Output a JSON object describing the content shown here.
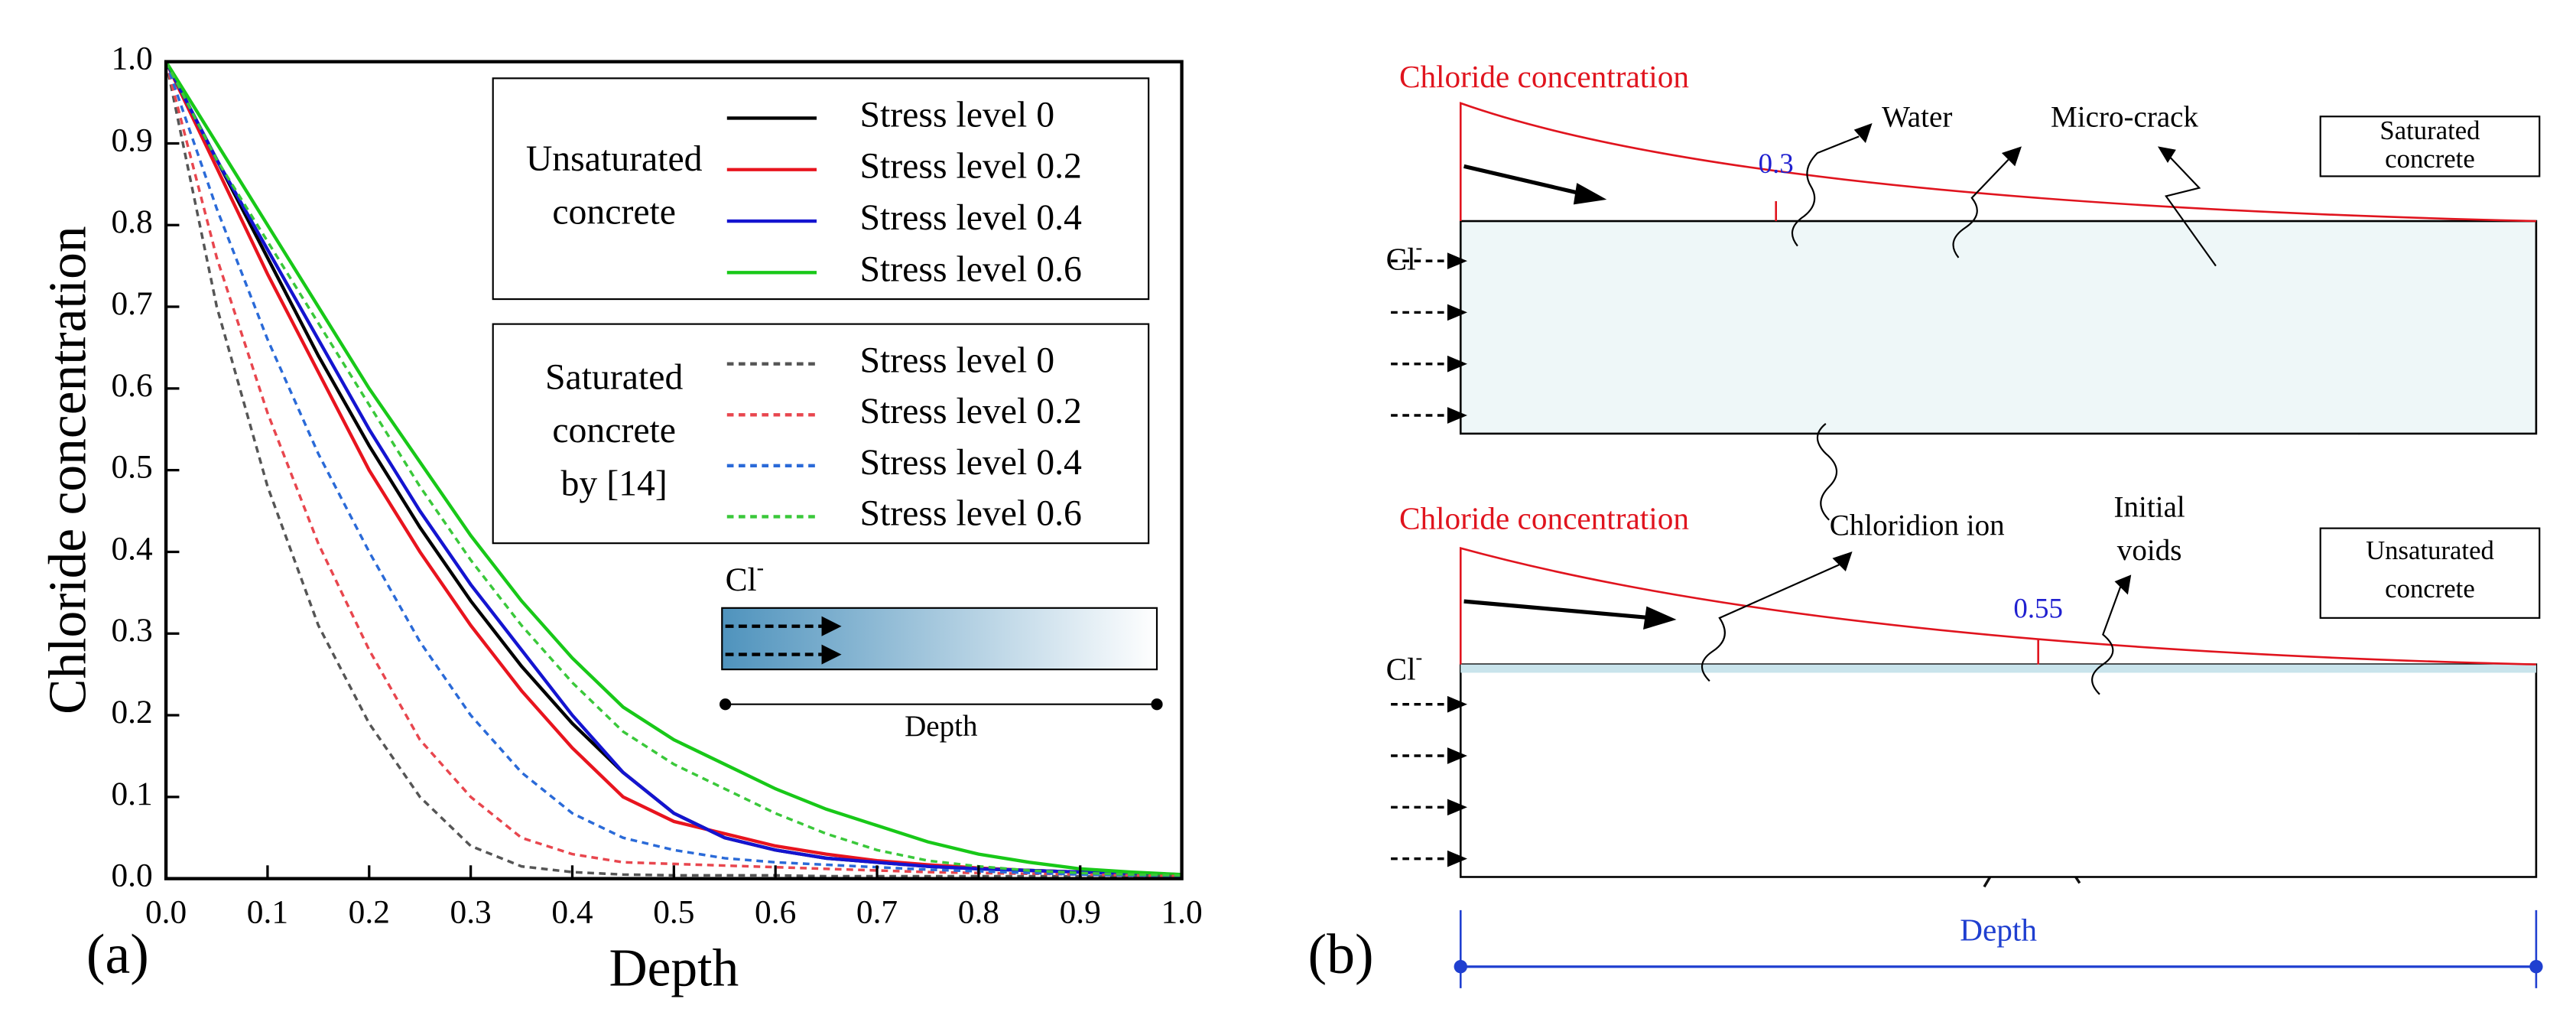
{
  "chart_data": {
    "type": "line",
    "panel_label": "(a)",
    "x_label": "Depth",
    "y_label": "Chloride concentration",
    "xlim": [
      0,
      1
    ],
    "ylim": [
      0,
      1
    ],
    "xticks": [
      {
        "value": 0,
        "label": "0.0"
      },
      0.1,
      0.2,
      0.3,
      0.4,
      0.5,
      0.6,
      0.7,
      0.8,
      0.9,
      {
        "value": 1,
        "label": "1.0"
      }
    ],
    "yticks": [
      {
        "value": 0,
        "label": "0.0"
      },
      0.1,
      0.2,
      0.3,
      0.4,
      0.5,
      0.6,
      0.7,
      0.8,
      0.9,
      {
        "value": 1,
        "label": "1.0"
      }
    ],
    "legend_groups": [
      {
        "label": [
          "Unsaturated",
          "concrete"
        ]
      },
      {
        "label": [
          "Saturated",
          "concrete",
          "by [14]"
        ]
      }
    ],
    "x": [
      0,
      0.05,
      0.1,
      0.15,
      0.2,
      0.25,
      0.3,
      0.35,
      0.4,
      0.45,
      0.5,
      0.55,
      0.6,
      0.65,
      0.7,
      0.75,
      0.8,
      0.85,
      0.9,
      0.95,
      1
    ],
    "series": [
      {
        "name": "Stress level 0",
        "color": "#000000",
        "linestyle": "solid",
        "values": [
          1,
          0.88,
          0.76,
          0.64,
          0.53,
          0.43,
          0.34,
          0.26,
          0.19,
          0.13,
          0.08,
          0.05,
          0.035,
          0.025,
          0.02,
          0.015,
          0.012,
          0.01,
          0.008,
          0.006,
          0.005
        ]
      },
      {
        "name": "Stress level 0.2",
        "color": "#e8141e",
        "linestyle": "solid",
        "values": [
          1,
          0.87,
          0.74,
          0.62,
          0.5,
          0.4,
          0.31,
          0.23,
          0.16,
          0.1,
          0.07,
          0.055,
          0.04,
          0.03,
          0.022,
          0.017,
          0.013,
          0.01,
          0.008,
          0.006,
          0.005
        ]
      },
      {
        "name": "Stress level 0.4",
        "color": "#1414d0",
        "linestyle": "solid",
        "values": [
          1,
          0.88,
          0.77,
          0.66,
          0.55,
          0.45,
          0.36,
          0.28,
          0.2,
          0.13,
          0.08,
          0.05,
          0.035,
          0.025,
          0.02,
          0.015,
          0.012,
          0.01,
          0.008,
          0.006,
          0.005
        ]
      },
      {
        "name": "Stress level 0.6",
        "color": "#18c818",
        "linestyle": "solid",
        "values": [
          1,
          0.9,
          0.8,
          0.7,
          0.6,
          0.51,
          0.42,
          0.34,
          0.27,
          0.21,
          0.17,
          0.14,
          0.11,
          0.085,
          0.065,
          0.045,
          0.03,
          0.02,
          0.012,
          0.008,
          0.005
        ]
      },
      {
        "name": "Stress level 0",
        "color": "#555555",
        "linestyle": "dashed",
        "values": [
          1,
          0.7,
          0.48,
          0.31,
          0.19,
          0.1,
          0.04,
          0.015,
          0.008,
          0.005,
          0.004,
          0.004,
          0.004,
          0.003,
          0.003,
          0.003,
          0.003,
          0.003,
          0.003,
          0.003,
          0.003
        ]
      },
      {
        "name": "Stress level 0.2",
        "color": "#e8464e",
        "linestyle": "dashed",
        "values": [
          1,
          0.76,
          0.57,
          0.41,
          0.28,
          0.17,
          0.1,
          0.05,
          0.03,
          0.02,
          0.018,
          0.016,
          0.014,
          0.012,
          0.01,
          0.008,
          0.007,
          0.006,
          0.005,
          0.004,
          0.003
        ]
      },
      {
        "name": "Stress level 0.4",
        "color": "#2a6ad8",
        "linestyle": "dashed",
        "values": [
          1,
          0.82,
          0.66,
          0.52,
          0.4,
          0.29,
          0.2,
          0.13,
          0.08,
          0.05,
          0.035,
          0.025,
          0.02,
          0.017,
          0.014,
          0.011,
          0.009,
          0.007,
          0.005,
          0.004,
          0.003
        ]
      },
      {
        "name": "Stress level 0.6",
        "color": "#3ac83a",
        "linestyle": "dashed",
        "values": [
          1,
          0.88,
          0.78,
          0.68,
          0.58,
          0.48,
          0.39,
          0.31,
          0.24,
          0.18,
          0.14,
          0.11,
          0.08,
          0.055,
          0.035,
          0.022,
          0.015,
          0.01,
          0.007,
          0.005,
          0.004
        ]
      }
    ],
    "inset": {
      "ion": "Cl",
      "charge": "-",
      "label": "Depth"
    }
  },
  "diagram": {
    "panel_label": "(b)",
    "saturated": {
      "curve_label": "Chloride concentration",
      "ion": "Cl",
      "charge": "-",
      "value": 0.3,
      "water": "Water",
      "crack": "Micro-crack",
      "box": [
        "Saturated",
        "concrete"
      ]
    },
    "unsaturated": {
      "curve_label": "Chloride concentration",
      "ion": "Cl",
      "charge": "-",
      "value": 0.55,
      "chloridion": "Chloridion ion",
      "voids": [
        "Initial",
        "voids"
      ],
      "box": [
        "Unsaturated",
        "concrete"
      ]
    },
    "depth": "Depth"
  }
}
